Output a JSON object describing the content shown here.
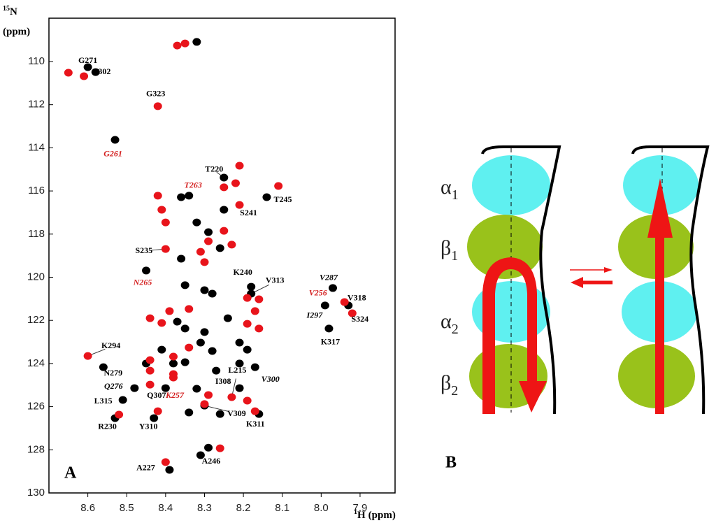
{
  "chart_data": {
    "type": "scatter",
    "panel_label": "A",
    "ylabel": {
      "mass": "15",
      "element": "N",
      "unit": "(ppm)"
    },
    "xlabel": {
      "mass": "1",
      "element": "H",
      "unit": "(ppm)"
    },
    "xlim": [
      8.7,
      7.81
    ],
    "xticks": [
      8.6,
      8.5,
      8.4,
      8.3,
      8.2,
      8.1,
      {
        "value": 8,
        "label": "8.0"
      },
      7.9
    ],
    "ylim": [
      108,
      130
    ],
    "yticks": [
      110,
      112,
      114,
      116,
      118,
      120,
      122,
      124,
      126,
      128,
      130
    ],
    "series": [
      {
        "color": "#000000",
        "label_color": "#000000",
        "label_style": "normal",
        "labels": [
          "G302",
          "G271",
          "T220",
          "T245",
          "K240",
          "V313",
          "V318",
          "K317",
          "N279",
          "L315",
          "R230",
          "Y310",
          "Q307",
          "I308",
          "V309",
          "K311",
          "A227",
          "A246"
        ],
        "x": [
          8.58,
          8.6,
          8.25,
          8.14,
          8.18,
          8.18,
          7.93,
          7.98,
          8.56,
          8.51,
          8.53,
          8.43,
          8.4,
          8.27,
          8.3,
          8.16,
          8.39,
          8.31
        ],
        "values": [
          110.49,
          110.26,
          115.38,
          116.29,
          120.44,
          120.76,
          121.31,
          122.38,
          124.17,
          125.69,
          126.53,
          126.53,
          125.14,
          124.33,
          125.95,
          126.34,
          128.93,
          128.25
        ]
      },
      {
        "color": "#000000",
        "label_color": "#000000",
        "label_style": "italic",
        "labels": [
          "V287",
          "I297",
          "Q276",
          "V300"
        ],
        "x": [
          7.97,
          7.99,
          8.48,
          8.17
        ],
        "values": [
          120.5,
          121.31,
          125.14,
          124.17
        ]
      },
      {
        "color": "#000000",
        "label_color": "#d42020",
        "label_style": "italic",
        "labels": [
          "G261",
          "T263",
          "N265"
        ],
        "x": [
          8.53,
          8.34,
          8.45
        ],
        "values": [
          113.63,
          116.22,
          119.69
        ]
      },
      {
        "color": "#e8141b",
        "label_color": "#000000",
        "label_style": "normal",
        "labels": [
          "S235",
          "K294",
          "G323",
          "S241",
          "L215",
          "S324"
        ],
        "x": [
          8.4,
          8.6,
          8.42,
          8.21,
          8.23,
          7.92
        ],
        "values": [
          118.69,
          123.65,
          112.07,
          116.65,
          125.56,
          121.67
        ]
      },
      {
        "color": "#e8141b",
        "label_color": "#d42020",
        "label_style": "italic",
        "labels": [
          "V256",
          "K257"
        ],
        "x": [
          7.94,
          8.38
        ],
        "values": [
          121.15,
          124.49
        ]
      },
      {
        "color": "#000000",
        "x": [
          8.32,
          8.36,
          8.32,
          8.29,
          8.26,
          8.36,
          8.35,
          8.3,
          8.28,
          8.37,
          8.35,
          8.3,
          8.24,
          8.21,
          8.19,
          8.41,
          8.38,
          8.35,
          8.31,
          8.28,
          8.21,
          8.45,
          8.34,
          8.26,
          8.21,
          8.29,
          8.32,
          8.25
        ],
        "values": [
          109.09,
          116.29,
          117.46,
          117.91,
          118.65,
          119.14,
          120.37,
          120.6,
          120.76,
          122.06,
          122.38,
          122.54,
          121.9,
          123.03,
          123.36,
          123.36,
          124.0,
          123.94,
          123.03,
          123.42,
          124.0,
          124.0,
          126.27,
          126.34,
          125.14,
          127.9,
          125.17,
          116.87
        ]
      },
      {
        "color": "#e8141b",
        "x": [
          8.35,
          8.37,
          8.42,
          8.41,
          8.4,
          8.29,
          8.31,
          8.3,
          8.25,
          8.23,
          8.44,
          8.41,
          8.39,
          8.34,
          8.19,
          8.16,
          8.44,
          8.44,
          8.38,
          8.34,
          8.38,
          8.44,
          8.29,
          8.3,
          8.19,
          8.19,
          8.16,
          8.17,
          8.25,
          8.21,
          8.11,
          8.65,
          8.61,
          8.52,
          8.42,
          8.17,
          8.4,
          8.26,
          8.22
        ],
        "values": [
          109.16,
          109.26,
          116.22,
          116.87,
          117.46,
          118.33,
          118.82,
          119.3,
          117.85,
          118.49,
          121.9,
          122.12,
          121.57,
          121.47,
          122.16,
          122.38,
          123.84,
          124.33,
          123.68,
          123.26,
          124.65,
          124.98,
          125.46,
          125.88,
          125.72,
          120.96,
          121.02,
          121.57,
          115.83,
          114.83,
          115.77,
          110.52,
          110.68,
          126.37,
          126.21,
          126.21,
          128.57,
          127.93,
          115.64
        ]
      }
    ]
  },
  "diagram": {
    "panel_label": "B",
    "labels": [
      {
        "symbol": "α",
        "sub": "1"
      },
      {
        "symbol": "β",
        "sub": "1"
      },
      {
        "symbol": "α",
        "sub": "2"
      },
      {
        "symbol": "β",
        "sub": "2"
      }
    ]
  }
}
